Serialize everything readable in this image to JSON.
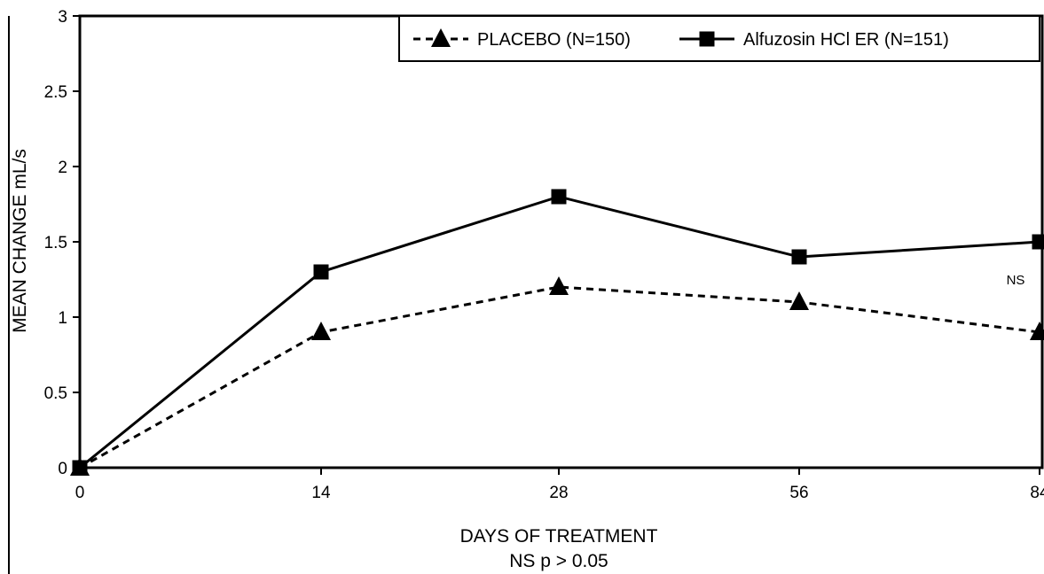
{
  "chart_data": {
    "type": "line",
    "categories": [
      "0",
      "14",
      "28",
      "56",
      "84"
    ],
    "xlabel": "DAYS OF TREATMENT",
    "ylabel": "MEAN CHANGE mL/s",
    "ylim": [
      0,
      3
    ],
    "yticks": [
      "0",
      "0.5",
      "1",
      "1.5",
      "2",
      "2.5",
      "3"
    ],
    "grid": false,
    "legend_position": "top-right",
    "series": [
      {
        "name": "PLACEBO (N=150)",
        "values": [
          0,
          0.9,
          1.2,
          1.1,
          0.9
        ],
        "marker": "triangle",
        "line_style": "dashed",
        "color": "#000000"
      },
      {
        "name": "Alfuzosin HCl ER (N=151)",
        "values": [
          0,
          1.3,
          1.8,
          1.4,
          1.5
        ],
        "marker": "square",
        "line_style": "solid",
        "color": "#000000"
      }
    ],
    "annotations": {
      "point_note": "NS",
      "footnote": "NS  p > 0.05"
    }
  }
}
